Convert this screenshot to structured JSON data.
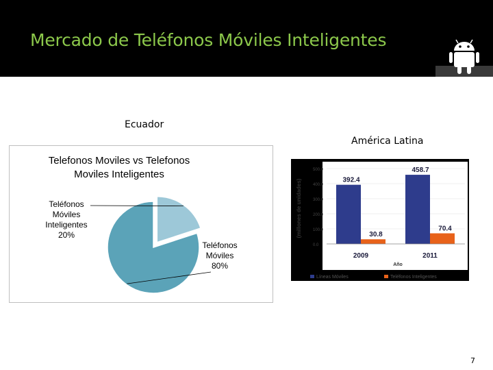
{
  "header": {
    "title": "Mercado de Teléfonos Móviles Inteligentes",
    "logo_icon": "android-logo-icon",
    "title_color": "#8cc84b"
  },
  "labels": {
    "ecuador": "Ecuador",
    "latam": "América Latina"
  },
  "page_number": "7",
  "chart_data": [
    {
      "type": "pie",
      "title_line1": "Telefonos Moviles vs Telefonos",
      "title_line2": "Moviles Inteligentes",
      "slices": [
        {
          "label_lines": [
            "Teléfonos",
            "Móviles",
            "Inteligentes",
            "20%"
          ],
          "value": 20,
          "color": "#9dc8d8",
          "exploded": true
        },
        {
          "label_lines": [
            "Teléfonos",
            "Móviles",
            "80%"
          ],
          "value": 80,
          "color": "#5ba3b8",
          "exploded": false
        }
      ]
    },
    {
      "type": "bar",
      "categories": [
        "2009",
        "2011"
      ],
      "series": [
        {
          "name": "Líneas Móviles",
          "values": [
            392.4,
            458.7
          ],
          "color": "#2e3c8c"
        },
        {
          "name": "Teléfonos Inteligentes",
          "values": [
            30.8,
            70.4
          ],
          "color": "#e8621a"
        }
      ],
      "data_labels": [
        [
          "392.4",
          "458.7"
        ],
        [
          "30.8",
          "70.4"
        ]
      ],
      "ylabel": "(millones de unidades)",
      "xlabel": "Año",
      "ylim": [
        0,
        500
      ],
      "yticks": [
        "0.0",
        "100.0",
        "200.0",
        "300.0",
        "400.0",
        "500.0"
      ],
      "legend": "bottom"
    }
  ]
}
